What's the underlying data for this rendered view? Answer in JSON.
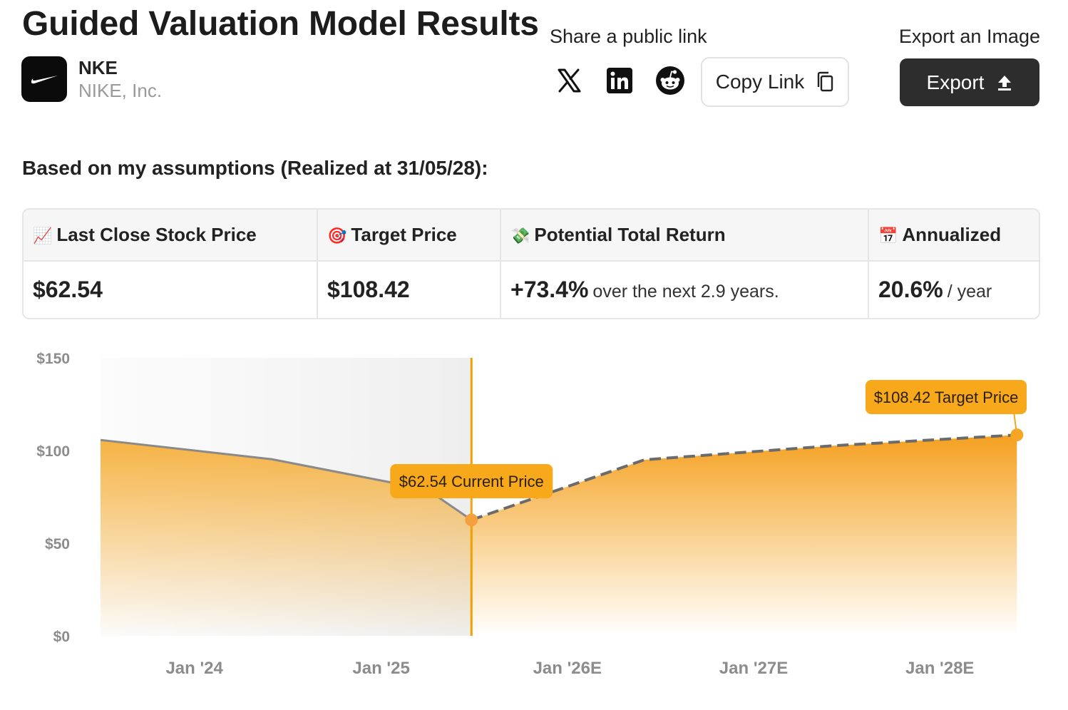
{
  "header": {
    "title": "Guided Valuation Model Results",
    "ticker": "NKE",
    "company_name": "NIKE, Inc.",
    "logo_icon": "nike-swoosh-icon"
  },
  "share": {
    "label": "Share a public link",
    "icons": [
      "x-icon",
      "linkedin-icon",
      "reddit-icon"
    ],
    "copy_label": "Copy Link"
  },
  "export": {
    "label": "Export an Image",
    "button_label": "Export"
  },
  "assumptions_text": "Based on my assumptions (Realized at 31/05/28):",
  "summary": {
    "columns": [
      {
        "emoji": "📈",
        "label": "Last Close Stock Price",
        "value": "$62.54",
        "suffix": ""
      },
      {
        "emoji": "🎯",
        "label": "Target Price",
        "value": "$108.42",
        "suffix": ""
      },
      {
        "emoji": "💸",
        "label": "Potential Total Return",
        "value": "+73.4%",
        "suffix": "over the next 2.9 years."
      },
      {
        "emoji": "📅",
        "label": "Annualized",
        "value": "20.6%",
        "suffix": "/ year"
      }
    ]
  },
  "colors": {
    "accent": "#f5a623",
    "accent_dark": "#f0a000",
    "historic_line": "#8a8a8a",
    "dark_button": "#2d2d2d"
  },
  "chart_data": {
    "type": "area",
    "x_ticks": [
      "Jan '24",
      "Jan '25",
      "Jan '26E",
      "Jan '27E",
      "Jan '28E"
    ],
    "y_ticks": [
      "$0",
      "$50",
      "$100",
      "$150"
    ],
    "ylim": [
      0,
      150
    ],
    "xlim": [
      "2023-07-01",
      "2028-06-01"
    ],
    "historic": [
      {
        "date": "2023-06-01",
        "value": 105.7
      },
      {
        "date": "2024-06-01",
        "value": 95.3
      },
      {
        "date": "2025-04-01",
        "value": 79.0
      },
      {
        "date": "2025-06-27",
        "value": 62.54
      }
    ],
    "projected": [
      {
        "date": "2025-06-27",
        "value": 62.54
      },
      {
        "date": "2026-06-01",
        "value": 95.0
      },
      {
        "date": "2027-06-01",
        "value": 102.5
      },
      {
        "date": "2028-05-31",
        "value": 108.42
      }
    ],
    "current_label": "$62.54 Current Price",
    "target_label": "$108.42 Target Price",
    "grid": false
  }
}
